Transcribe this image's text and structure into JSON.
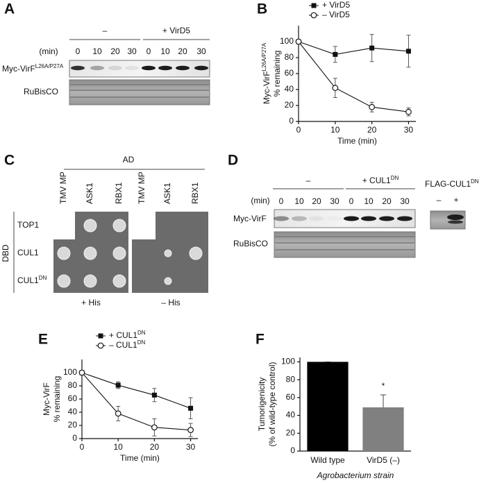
{
  "figure": {
    "A": {
      "label": "A",
      "groups": [
        "–",
        "+ VirD5"
      ],
      "min_label": "(min)",
      "times": [
        0,
        10,
        20,
        30,
        0,
        10,
        20,
        30
      ],
      "row1": {
        "text": "Myc-VirF",
        "sup": "L26A/P27A"
      },
      "row2": "RuBisCO"
    },
    "C": {
      "label": "C",
      "ad": "AD",
      "columns": [
        "TMV MP",
        "ASK1",
        "RBX1",
        "TMV MP",
        "ASK1",
        "RBX1"
      ],
      "dbd": "DBD",
      "rows": [
        {
          "text": "TOP1"
        },
        {
          "text": "CUL1"
        },
        {
          "text": "CUL1",
          "sup": "DN"
        }
      ],
      "conditions": [
        "+ His",
        "– His"
      ]
    },
    "D": {
      "label": "D",
      "groups": [
        {
          "text": "–"
        },
        {
          "text": "+ CUL1",
          "sup": "DN"
        }
      ],
      "min_label": "(min)",
      "times": [
        0,
        10,
        20,
        30,
        0,
        10,
        20,
        30
      ],
      "row1": {
        "text": "Myc-VirF"
      },
      "row2": "RuBisCO",
      "flag": {
        "text": "FLAG-CUL1",
        "sup": "DN"
      },
      "flag_lanes": [
        "–",
        "+"
      ]
    }
  },
  "chart_data": [
    {
      "type": "line",
      "panel": "B",
      "ylabel": "Myc-VirF",
      "ylabel_sup": "L26A/P27A",
      "ylabel2": "% remaining",
      "xlabel": "Time (min)",
      "x": [
        0,
        10,
        20,
        30
      ],
      "xlim": [
        0,
        32
      ],
      "xticks": [
        0,
        10,
        20,
        30
      ],
      "ylim": [
        0,
        120
      ],
      "yticks": [
        0,
        20,
        40,
        60,
        80,
        100
      ],
      "series": [
        {
          "name": "+ VirD5",
          "color": "#111111",
          "marker": "square",
          "values": [
            100,
            84,
            92,
            88
          ],
          "errors": [
            0,
            10,
            17,
            20
          ]
        },
        {
          "name": "– VirD5",
          "color": "#111111",
          "marker": "circle",
          "values": [
            100,
            42,
            18,
            12
          ],
          "errors": [
            0,
            12,
            6,
            5
          ]
        }
      ]
    },
    {
      "type": "line",
      "panel": "E",
      "ylabel": "Myc-VirF",
      "ylabel2": "% remaining",
      "xlabel": "Time (min)",
      "x": [
        0,
        10,
        20,
        30
      ],
      "xlim": [
        0,
        32
      ],
      "xticks": [
        0,
        10,
        20,
        30
      ],
      "ylim": [
        0,
        120
      ],
      "yticks": [
        0,
        20,
        40,
        60,
        80,
        100
      ],
      "series": [
        {
          "name": "+ CUL1",
          "name_sup": "DN",
          "color": "#111111",
          "marker": "square",
          "values": [
            100,
            81,
            66,
            46
          ],
          "errors": [
            0,
            5,
            10,
            16
          ]
        },
        {
          "name": "– CUL1",
          "name_sup": "DN",
          "color": "#111111",
          "marker": "circle",
          "values": [
            100,
            38,
            17,
            13
          ],
          "errors": [
            0,
            11,
            13,
            10
          ]
        }
      ]
    },
    {
      "type": "bar",
      "panel": "F",
      "ylabel": "Tumorigenicity",
      "ylabel2": "(% of wild-type control)",
      "xlabel": "Agrobacterium strain",
      "categories": [
        "Wild type",
        "VirD5 (–)"
      ],
      "values": [
        100,
        49
      ],
      "errors": [
        0,
        14
      ],
      "colors": [
        "#000000",
        "#808080"
      ],
      "annotation": "*",
      "ylim": [
        0,
        105
      ],
      "yticks": [
        0,
        20,
        40,
        60,
        80,
        100
      ]
    }
  ]
}
